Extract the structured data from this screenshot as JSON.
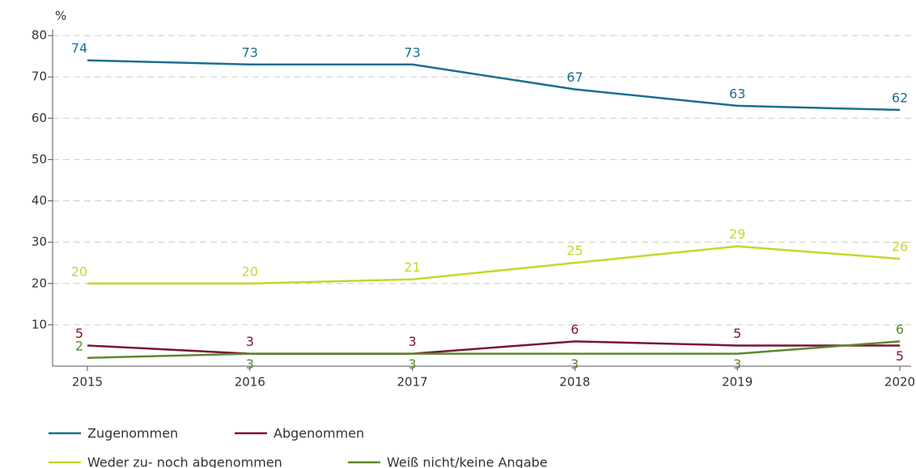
{
  "chart_data": {
    "type": "line",
    "y_unit": "%",
    "categories": [
      "2015",
      "2016",
      "2017",
      "2018",
      "2019",
      "2020"
    ],
    "series": [
      {
        "name": "Zugenommen",
        "color": "#1b6f8f",
        "values": [
          74,
          73,
          73,
          67,
          63,
          62
        ]
      },
      {
        "name": "Abgenommen",
        "color": "#7b1434",
        "values": [
          5,
          3,
          3,
          6,
          5,
          5
        ]
      },
      {
        "name": "Weder zu- noch abgenommen",
        "color": "#c9d52b",
        "values": [
          20,
          20,
          21,
          25,
          29,
          26
        ]
      },
      {
        "name": "Weiß nicht/keine Angabe",
        "color": "#5b8a2b",
        "values": [
          2,
          3,
          3,
          3,
          3,
          6
        ]
      }
    ],
    "ylim": [
      0,
      80
    ],
    "yticks": [
      10,
      20,
      30,
      40,
      50,
      60,
      70,
      80
    ],
    "grid": true
  }
}
